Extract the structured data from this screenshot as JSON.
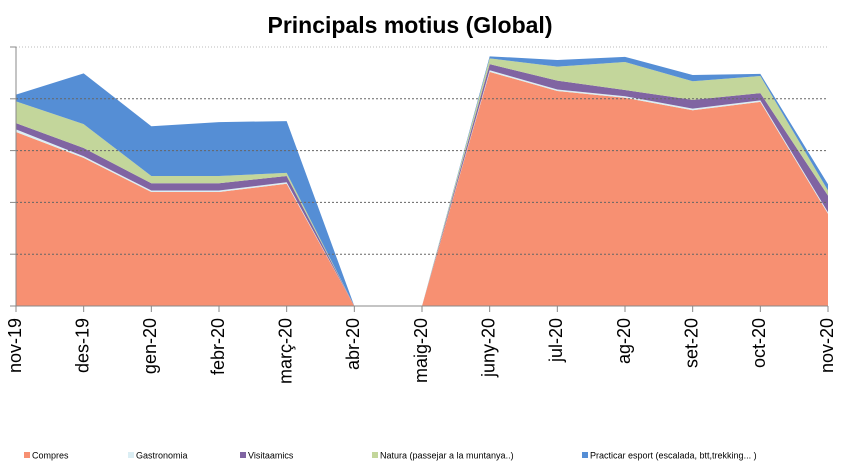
{
  "chart_data": {
    "type": "area",
    "stacked": true,
    "title": "Principals motius (Global)",
    "categories": [
      "nov-19",
      "des-19",
      "gen-20",
      "febr-20",
      "març-20",
      "abr-20",
      "maig-20",
      "juny-20",
      "jul-20",
      "ag-20",
      "set-20",
      "oct-20",
      "nov-20"
    ],
    "series": [
      {
        "name": "Compres",
        "color": "#f79072",
        "values": [
          3.36,
          2.86,
          2.2,
          2.2,
          2.36,
          0,
          0,
          4.52,
          4.15,
          4.02,
          3.78,
          3.94,
          1.78
        ]
      },
      {
        "name": "Gastronomia",
        "color": "#dbeef4",
        "values": [
          0.05,
          0.03,
          0.03,
          0.03,
          0.03,
          0,
          0,
          0.03,
          0.03,
          0.03,
          0.03,
          0.03,
          0.03
        ]
      },
      {
        "name": "Visitaamics",
        "color": "#8064a2",
        "values": [
          0.12,
          0.16,
          0.14,
          0.14,
          0.12,
          0,
          0,
          0.12,
          0.17,
          0.12,
          0.17,
          0.14,
          0.32
        ]
      },
      {
        "name": "Natura (passejar a la muntanya..)",
        "color": "#c3d69b",
        "values": [
          0.42,
          0.46,
          0.14,
          0.14,
          0.06,
          0,
          0,
          0.11,
          0.27,
          0.54,
          0.36,
          0.33,
          0.1
        ]
      },
      {
        "name": "Practicar esport (escalada, btt,trekking... )",
        "color": "#558ed5",
        "values": [
          0.13,
          0.98,
          0.96,
          1.04,
          1.0,
          0,
          0,
          0.04,
          0.13,
          0.1,
          0.12,
          0.04,
          0.12
        ]
      }
    ],
    "ylim": [
      0,
      5
    ],
    "yticks": [
      0,
      1,
      2,
      3,
      4,
      5
    ],
    "grid": true,
    "legend": "bottom"
  }
}
